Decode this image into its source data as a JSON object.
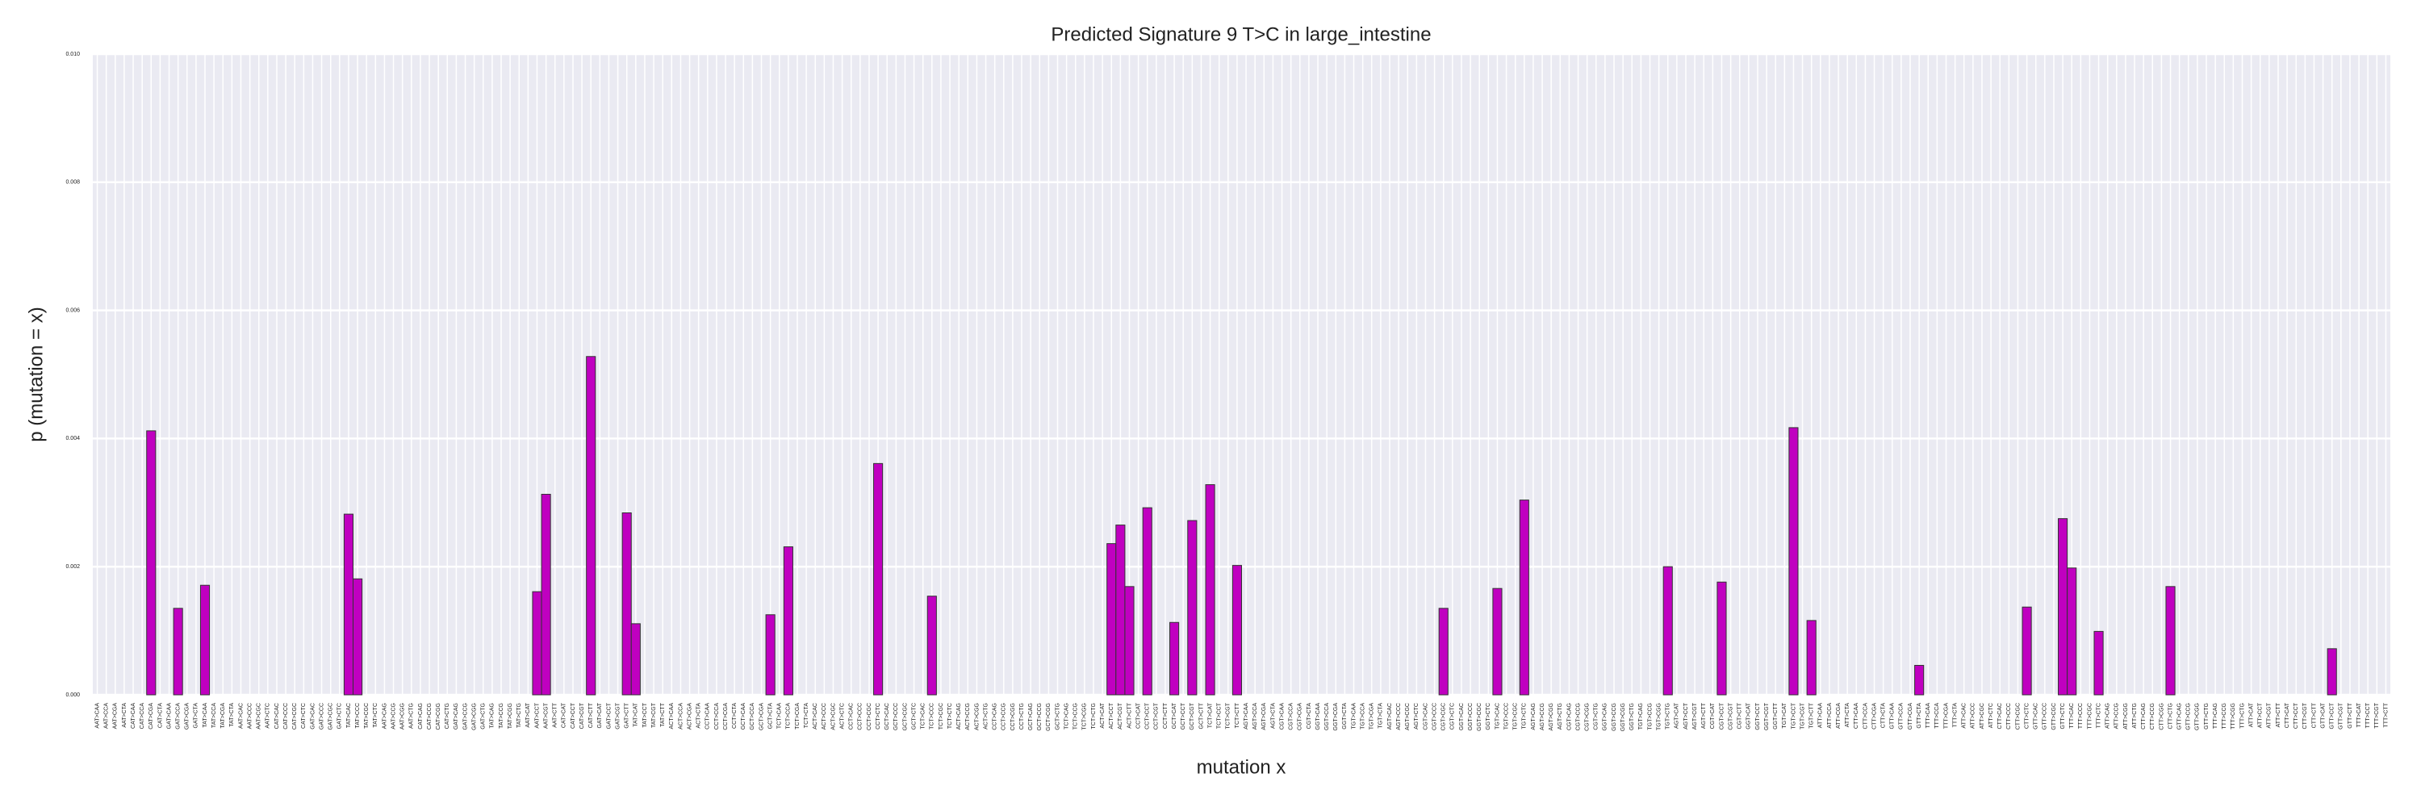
{
  "chart_data": {
    "type": "bar",
    "title": "Predicted Signature 9 T>C in large_intestine",
    "xlabel": "mutation x",
    "ylabel": "p (mutation = x)",
    "color": "#c000c0",
    "grid": true,
    "ylim": [
      0,
      0.01
    ],
    "yticks": [
      {
        "value": 0,
        "label": "0.000"
      },
      {
        "value": 0.002,
        "label": "0.002"
      },
      {
        "value": 0.004,
        "label": "0.004"
      },
      {
        "value": 0.006,
        "label": "0.006"
      },
      {
        "value": 0.008,
        "label": "0.008"
      },
      {
        "value": 0.01,
        "label": "0.010"
      }
    ],
    "categories": [
      "AAT>CAA",
      "AAT>CCA",
      "AAT>CGA",
      "AAT>CTA",
      "CAT>CAA",
      "CAT>CCA",
      "CAT>CGA",
      "CAT>CTA",
      "GAT>CAA",
      "GAT>CCA",
      "GAT>CGA",
      "GAT>CTA",
      "TAT>CAA",
      "TAT>CCA",
      "TAT>CGA",
      "TAT>CTA",
      "AAT>CAC",
      "AAT>CCC",
      "AAT>CGC",
      "AAT>CTC",
      "CAT>CAC",
      "CAT>CCC",
      "CAT>CGC",
      "CAT>CTC",
      "GAT>CAC",
      "GAT>CCC",
      "GAT>CGC",
      "GAT>CTC",
      "TAT>CAC",
      "TAT>CCC",
      "TAT>CGC",
      "TAT>CTC",
      "AAT>CAG",
      "AAT>CCG",
      "AAT>CGG",
      "AAT>CTG",
      "CAT>CAG",
      "CAT>CCG",
      "CAT>CGG",
      "CAT>CTG",
      "GAT>CAG",
      "GAT>CCG",
      "GAT>CGG",
      "GAT>CTG",
      "TAT>CAG",
      "TAT>CCG",
      "TAT>CGG",
      "TAT>CTG",
      "AAT>CAT",
      "AAT>CCT",
      "AAT>CGT",
      "AAT>CTT",
      "CAT>CAT",
      "CAT>CCT",
      "CAT>CGT",
      "CAT>CTT",
      "GAT>CAT",
      "GAT>CCT",
      "GAT>CGT",
      "GAT>CTT",
      "TAT>CAT",
      "TAT>CCT",
      "TAT>CGT",
      "TAT>CTT",
      "ACT>CAA",
      "ACT>CCA",
      "ACT>CGA",
      "ACT>CTA",
      "CCT>CAA",
      "CCT>CCA",
      "CCT>CGA",
      "CCT>CTA",
      "GCT>CAA",
      "GCT>CCA",
      "GCT>CGA",
      "GCT>CTA",
      "TCT>CAA",
      "TCT>CCA",
      "TCT>CGA",
      "TCT>CTA",
      "ACT>CAC",
      "ACT>CCC",
      "ACT>CGC",
      "ACT>CTC",
      "CCT>CAC",
      "CCT>CCC",
      "CCT>CGC",
      "CCT>CTC",
      "GCT>CAC",
      "GCT>CCC",
      "GCT>CGC",
      "GCT>CTC",
      "TCT>CAC",
      "TCT>CCC",
      "TCT>CGC",
      "TCT>CTC",
      "ACT>CAG",
      "ACT>CCG",
      "ACT>CGG",
      "ACT>CTG",
      "CCT>CAG",
      "CCT>CCG",
      "CCT>CGG",
      "CCT>CTG",
      "GCT>CAG",
      "GCT>CCG",
      "GCT>CGG",
      "GCT>CTG",
      "TCT>CAG",
      "TCT>CCG",
      "TCT>CGG",
      "TCT>CTG",
      "ACT>CAT",
      "ACT>CCT",
      "ACT>CGT",
      "ACT>CTT",
      "CCT>CAT",
      "CCT>CCT",
      "CCT>CGT",
      "CCT>CTT",
      "GCT>CAT",
      "GCT>CCT",
      "GCT>CGT",
      "GCT>CTT",
      "TCT>CAT",
      "TCT>CCT",
      "TCT>CGT",
      "TCT>CTT",
      "AGT>CAA",
      "AGT>CCA",
      "AGT>CGA",
      "AGT>CTA",
      "CGT>CAA",
      "CGT>CCA",
      "CGT>CGA",
      "CGT>CTA",
      "GGT>CAA",
      "GGT>CCA",
      "GGT>CGA",
      "GGT>CTA",
      "TGT>CAA",
      "TGT>CCA",
      "TGT>CGA",
      "TGT>CTA",
      "AGT>CAC",
      "AGT>CCC",
      "AGT>CGC",
      "AGT>CTC",
      "CGT>CAC",
      "CGT>CCC",
      "CGT>CGC",
      "CGT>CTC",
      "GGT>CAC",
      "GGT>CCC",
      "GGT>CGC",
      "GGT>CTC",
      "TGT>CAC",
      "TGT>CCC",
      "TGT>CGC",
      "TGT>CTC",
      "AGT>CAG",
      "AGT>CCG",
      "AGT>CGG",
      "AGT>CTG",
      "CGT>CAG",
      "CGT>CCG",
      "CGT>CGG",
      "CGT>CTG",
      "GGT>CAG",
      "GGT>CCG",
      "GGT>CGG",
      "GGT>CTG",
      "TGT>CAG",
      "TGT>CCG",
      "TGT>CGG",
      "TGT>CTG",
      "AGT>CAT",
      "AGT>CCT",
      "AGT>CGT",
      "AGT>CTT",
      "CGT>CAT",
      "CGT>CCT",
      "CGT>CGT",
      "CGT>CTT",
      "GGT>CAT",
      "GGT>CCT",
      "GGT>CGT",
      "GGT>CTT",
      "TGT>CAT",
      "TGT>CCT",
      "TGT>CGT",
      "TGT>CTT",
      "ATT>CAA",
      "ATT>CCA",
      "ATT>CGA",
      "ATT>CTA",
      "CTT>CAA",
      "CTT>CCA",
      "CTT>CGA",
      "CTT>CTA",
      "GTT>CAA",
      "GTT>CCA",
      "GTT>CGA",
      "GTT>CTA",
      "TTT>CAA",
      "TTT>CCA",
      "TTT>CGA",
      "TTT>CTA",
      "ATT>CAC",
      "ATT>CCC",
      "ATT>CGC",
      "ATT>CTC",
      "CTT>CAC",
      "CTT>CCC",
      "CTT>CGC",
      "CTT>CTC",
      "GTT>CAC",
      "GTT>CCC",
      "GTT>CGC",
      "GTT>CTC",
      "TTT>CAC",
      "TTT>CCC",
      "TTT>CGC",
      "TTT>CTC",
      "ATT>CAG",
      "ATT>CCG",
      "ATT>CGG",
      "ATT>CTG",
      "CTT>CAG",
      "CTT>CCG",
      "CTT>CGG",
      "CTT>CTG",
      "GTT>CAG",
      "GTT>CCG",
      "GTT>CGG",
      "GTT>CTG",
      "TTT>CAG",
      "TTT>CCG",
      "TTT>CGG",
      "TTT>CTG",
      "ATT>CAT",
      "ATT>CCT",
      "ATT>CGT",
      "ATT>CTT",
      "CTT>CAT",
      "CTT>CCT",
      "CTT>CGT",
      "CTT>CTT",
      "GTT>CAT",
      "GTT>CCT",
      "GTT>CGT",
      "GTT>CTT",
      "TTT>CAT",
      "TTT>CCT",
      "TTT>CGT",
      "TTT>CTT"
    ],
    "values": [
      0,
      0,
      0,
      0,
      0,
      0,
      0.00412,
      0,
      0,
      0.00135,
      0,
      0,
      0.00171,
      0,
      0,
      0,
      0,
      0,
      0,
      0,
      0,
      0,
      0,
      0,
      0,
      0,
      0,
      0,
      0.00282,
      0.00181,
      0,
      0,
      0,
      0,
      0,
      0,
      0,
      0,
      0,
      0,
      0,
      0,
      0,
      0,
      0,
      0,
      0,
      0,
      0,
      0.00161,
      0.00313,
      0,
      0,
      0,
      0,
      0.00528,
      0,
      0,
      0,
      0.00284,
      0.00111,
      0,
      0,
      0,
      0,
      0,
      0,
      0,
      0,
      0,
      0,
      0,
      0,
      0,
      0,
      0.00125,
      0,
      0.00231,
      0,
      0,
      0,
      0,
      0,
      0,
      0,
      0,
      0,
      0.00361,
      0,
      0,
      0,
      0,
      0,
      0.00154,
      0,
      0,
      0,
      0,
      0,
      0,
      0,
      0,
      0,
      0,
      0,
      0,
      0,
      0,
      0,
      0,
      0,
      0,
      0,
      0.00236,
      0.00265,
      0.00169,
      0,
      0.00292,
      0,
      0,
      0.00113,
      0,
      0.00272,
      0,
      0.00328,
      0,
      0,
      0.00202,
      0,
      0,
      0,
      0,
      0,
      0,
      0,
      0,
      0,
      0,
      0,
      0,
      0,
      0,
      0,
      0,
      0,
      0,
      0,
      0,
      0,
      0,
      0.00135,
      0,
      0,
      0,
      0,
      0,
      0.00166,
      0,
      0,
      0.00304,
      0,
      0,
      0,
      0,
      0,
      0,
      0,
      0,
      0,
      0,
      0,
      0,
      0,
      0,
      0,
      0.002,
      0,
      0,
      0,
      0,
      0,
      0.00176,
      0,
      0,
      0,
      0,
      0,
      0,
      0,
      0.00417,
      0,
      0.00116,
      0,
      0,
      0,
      0,
      0,
      0,
      0,
      0,
      0,
      0,
      0,
      0.00046,
      0,
      0,
      0,
      0,
      0,
      0,
      0,
      0,
      0,
      0,
      0,
      0.00137,
      0,
      0,
      0,
      0.00275,
      0.00198,
      0,
      0,
      0.00099,
      0,
      0,
      0,
      0,
      0,
      0,
      0,
      0.00169,
      0,
      0,
      0,
      0,
      0,
      0,
      0,
      0,
      0,
      0,
      0,
      0,
      0,
      0,
      0,
      0,
      0,
      0.00072,
      0,
      0,
      0,
      0,
      0,
      0
    ]
  }
}
